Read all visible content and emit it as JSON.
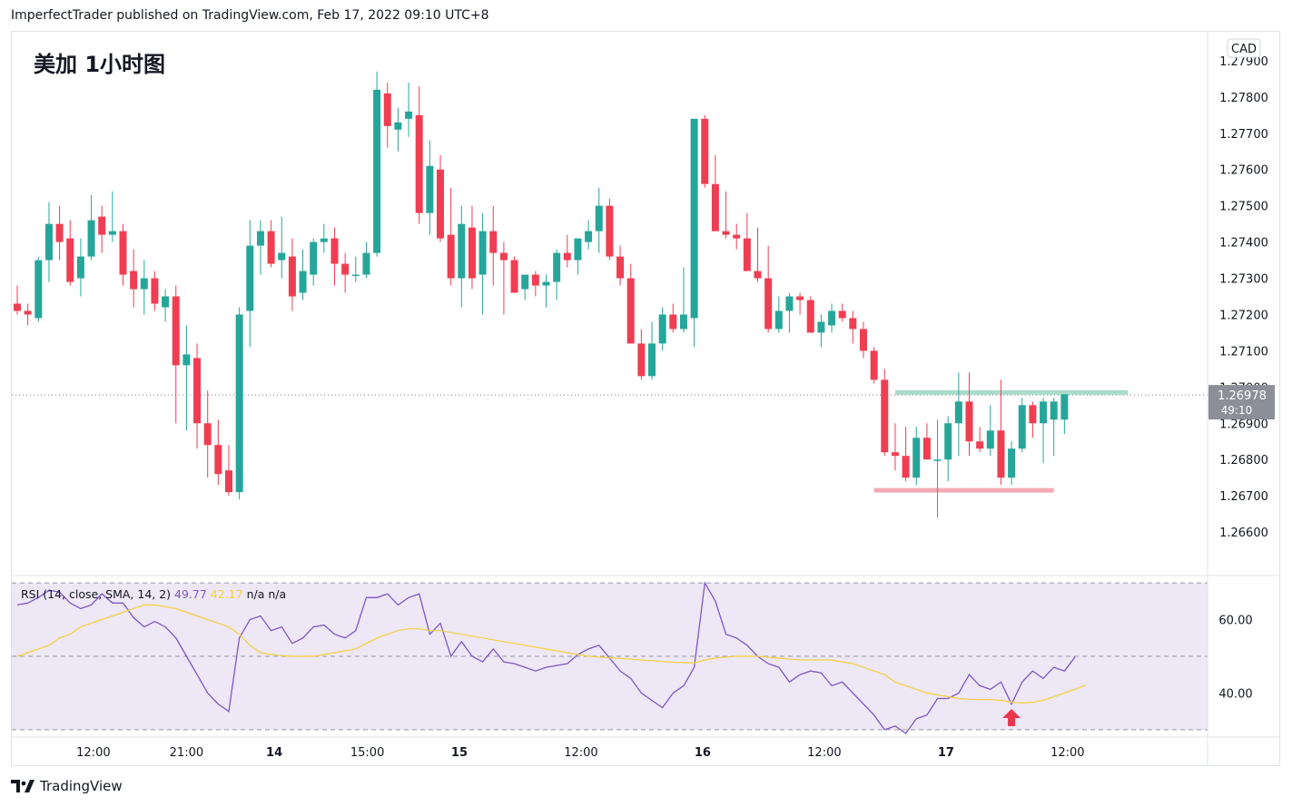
{
  "header": {
    "published_text": "ImperfectTrader published on TradingView.com, Feb 17, 2022 09:10 UTC+8"
  },
  "footer": {
    "brand": "TradingView",
    "logo_icon": "tradingview-logo-icon"
  },
  "colors": {
    "up": "#26a69a",
    "down": "#ef3e52",
    "rsi_line": "#7e57c2",
    "rsi_ma": "#f5d13c",
    "rsi_band": "#ede7f6",
    "support_line": "#f4aab4",
    "resistance_line": "#a9dcc9",
    "arrow": "#e8364e",
    "price_label_bg": "#8c8f98"
  },
  "chart_data": [
    {
      "type": "candlestick",
      "title": "美加 1小时图",
      "currency": "CAD",
      "y_ticks": [
        "1.27900",
        "1.27800",
        "1.27700",
        "1.27600",
        "1.27500",
        "1.27400",
        "1.27300",
        "1.27200",
        "1.27100",
        "1.27000",
        "1.26900",
        "1.26800",
        "1.26700",
        "1.26600"
      ],
      "y_tick_values": [
        1.279,
        1.278,
        1.277,
        1.276,
        1.275,
        1.274,
        1.273,
        1.272,
        1.271,
        1.27,
        1.269,
        1.268,
        1.267,
        1.266
      ],
      "ylim": [
        1.2648,
        1.2798
      ],
      "x_ticks": [
        {
          "label": "12:00",
          "index": 7.2,
          "bold": false
        },
        {
          "label": "21:00",
          "index": 16,
          "bold": false
        },
        {
          "label": "14",
          "index": 24.3,
          "bold": true
        },
        {
          "label": "15:00",
          "index": 33.1,
          "bold": false
        },
        {
          "label": "15",
          "index": 41.8,
          "bold": true
        },
        {
          "label": "12:00",
          "index": 53.3,
          "bold": false
        },
        {
          "label": "16",
          "index": 64.8,
          "bold": true
        },
        {
          "label": "12:00",
          "index": 76.3,
          "bold": false
        },
        {
          "label": "17",
          "index": 87.8,
          "bold": true
        },
        {
          "label": "12:00",
          "index": 99.3,
          "bold": false
        }
      ],
      "last_price": {
        "value": 1.26978,
        "label": "1.26978",
        "countdown": "49:10"
      },
      "resistance": {
        "value": 1.26985,
        "from_index": 83,
        "to_index": 105
      },
      "support": {
        "value": 1.26715,
        "from_index": 81,
        "to_index": 98
      },
      "candles": [
        [
          1.2723,
          1.2728,
          1.272,
          1.2721
        ],
        [
          1.2721,
          1.2723,
          1.2717,
          1.272
        ],
        [
          1.2719,
          1.2736,
          1.2718,
          1.2735
        ],
        [
          1.2735,
          1.2751,
          1.2729,
          1.2745
        ],
        [
          1.2745,
          1.275,
          1.2735,
          1.274
        ],
        [
          1.2741,
          1.2746,
          1.2728,
          1.2729
        ],
        [
          1.273,
          1.2741,
          1.2725,
          1.2736
        ],
        [
          1.2736,
          1.2753,
          1.2735,
          1.2746
        ],
        [
          1.2747,
          1.275,
          1.2737,
          1.2742
        ],
        [
          1.2742,
          1.2754,
          1.274,
          1.2743
        ],
        [
          1.2743,
          1.2745,
          1.2728,
          1.2731
        ],
        [
          1.2732,
          1.2738,
          1.2722,
          1.2727
        ],
        [
          1.2727,
          1.2735,
          1.272,
          1.273
        ],
        [
          1.273,
          1.2732,
          1.2721,
          1.2723
        ],
        [
          1.2722,
          1.2727,
          1.2718,
          1.2725
        ],
        [
          1.2725,
          1.2728,
          1.269,
          1.2706
        ],
        [
          1.2706,
          1.2717,
          1.2688,
          1.2709
        ],
        [
          1.2708,
          1.2712,
          1.2683,
          1.269
        ],
        [
          1.269,
          1.2699,
          1.2675,
          1.2684
        ],
        [
          1.2684,
          1.2691,
          1.2673,
          1.2676
        ],
        [
          1.2677,
          1.2684,
          1.267,
          1.2671
        ],
        [
          1.2671,
          1.2722,
          1.2669,
          1.272
        ],
        [
          1.2721,
          1.2746,
          1.2711,
          1.2739
        ],
        [
          1.2739,
          1.2746,
          1.2731,
          1.2743
        ],
        [
          1.2743,
          1.2746,
          1.2733,
          1.2734
        ],
        [
          1.2735,
          1.2747,
          1.273,
          1.2737
        ],
        [
          1.2736,
          1.2741,
          1.2721,
          1.2725
        ],
        [
          1.2726,
          1.2738,
          1.2724,
          1.2732
        ],
        [
          1.2731,
          1.2741,
          1.2728,
          1.274
        ],
        [
          1.274,
          1.2745,
          1.2737,
          1.2741
        ],
        [
          1.2741,
          1.2744,
          1.2728,
          1.2734
        ],
        [
          1.2734,
          1.2737,
          1.2726,
          1.2731
        ],
        [
          1.2731,
          1.2736,
          1.2729,
          1.2731
        ],
        [
          1.2731,
          1.274,
          1.273,
          1.2737
        ],
        [
          1.2737,
          1.2787,
          1.2736,
          1.2782
        ],
        [
          1.2781,
          1.2784,
          1.2766,
          1.2772
        ],
        [
          1.2771,
          1.2777,
          1.2765,
          1.2773
        ],
        [
          1.2774,
          1.2784,
          1.2769,
          1.2776
        ],
        [
          1.2775,
          1.2783,
          1.2745,
          1.2748
        ],
        [
          1.2748,
          1.2768,
          1.2742,
          1.2761
        ],
        [
          1.276,
          1.2764,
          1.274,
          1.2741
        ],
        [
          1.2742,
          1.2755,
          1.2728,
          1.273
        ],
        [
          1.273,
          1.275,
          1.2722,
          1.2745
        ],
        [
          1.2744,
          1.275,
          1.2727,
          1.273
        ],
        [
          1.2731,
          1.2748,
          1.272,
          1.2743
        ],
        [
          1.2743,
          1.275,
          1.2728,
          1.2737
        ],
        [
          1.2737,
          1.274,
          1.272,
          1.2735
        ],
        [
          1.2735,
          1.2736,
          1.2726,
          1.2726
        ],
        [
          1.2727,
          1.273,
          1.2724,
          1.2731
        ],
        [
          1.2731,
          1.2732,
          1.2725,
          1.2728
        ],
        [
          1.2728,
          1.2731,
          1.2722,
          1.2729
        ],
        [
          1.2729,
          1.2738,
          1.2724,
          1.2737
        ],
        [
          1.2737,
          1.2742,
          1.2733,
          1.2735
        ],
        [
          1.2735,
          1.2741,
          1.2731,
          1.2741
        ],
        [
          1.274,
          1.2746,
          1.2738,
          1.2743
        ],
        [
          1.2743,
          1.2755,
          1.2737,
          1.275
        ],
        [
          1.275,
          1.2752,
          1.2735,
          1.2736
        ],
        [
          1.2736,
          1.2739,
          1.2728,
          1.273
        ],
        [
          1.273,
          1.2734,
          1.2712,
          1.2712
        ],
        [
          1.2712,
          1.2716,
          1.2702,
          1.2703
        ],
        [
          1.2703,
          1.2718,
          1.2702,
          1.2712
        ],
        [
          1.2712,
          1.2722,
          1.271,
          1.272
        ],
        [
          1.272,
          1.2723,
          1.2715,
          1.2716
        ],
        [
          1.2716,
          1.2733,
          1.2715,
          1.272
        ],
        [
          1.2719,
          1.2774,
          1.2711,
          1.2774
        ],
        [
          1.2774,
          1.2775,
          1.2755,
          1.2756
        ],
        [
          1.2756,
          1.2764,
          1.2743,
          1.2743
        ],
        [
          1.2743,
          1.2754,
          1.2741,
          1.2742
        ],
        [
          1.2742,
          1.2745,
          1.2738,
          1.2741
        ],
        [
          1.2741,
          1.2748,
          1.2732,
          1.2732
        ],
        [
          1.2732,
          1.2744,
          1.2729,
          1.273
        ],
        [
          1.273,
          1.2739,
          1.2715,
          1.2716
        ],
        [
          1.2716,
          1.2725,
          1.2715,
          1.2721
        ],
        [
          1.2721,
          1.2726,
          1.2715,
          1.2725
        ],
        [
          1.2725,
          1.2726,
          1.272,
          1.2724
        ],
        [
          1.2724,
          1.2725,
          1.2715,
          1.2715
        ],
        [
          1.2715,
          1.272,
          1.2711,
          1.2718
        ],
        [
          1.2717,
          1.2723,
          1.2715,
          1.2721
        ],
        [
          1.2721,
          1.2723,
          1.2718,
          1.2719
        ],
        [
          1.2719,
          1.2721,
          1.2712,
          1.2716
        ],
        [
          1.2716,
          1.2718,
          1.2708,
          1.271
        ],
        [
          1.271,
          1.2711,
          1.2701,
          1.2702
        ],
        [
          1.2702,
          1.2705,
          1.2681,
          1.2682
        ],
        [
          1.2682,
          1.269,
          1.2677,
          1.2681
        ],
        [
          1.2681,
          1.2689,
          1.2674,
          1.2675
        ],
        [
          1.2675,
          1.2689,
          1.2673,
          1.2686
        ],
        [
          1.2686,
          1.269,
          1.2681,
          1.268
        ],
        [
          1.268,
          1.2691,
          1.2664,
          1.268
        ],
        [
          1.268,
          1.2692,
          1.2674,
          1.269
        ],
        [
          1.269,
          1.2704,
          1.2681,
          1.2696
        ],
        [
          1.2696,
          1.2704,
          1.2681,
          1.2685
        ],
        [
          1.2685,
          1.2689,
          1.2682,
          1.2683
        ],
        [
          1.2683,
          1.2695,
          1.2681,
          1.2688
        ],
        [
          1.2688,
          1.2702,
          1.2673,
          1.2675
        ],
        [
          1.2675,
          1.2685,
          1.2673,
          1.2683
        ],
        [
          1.2683,
          1.2697,
          1.2682,
          1.2695
        ],
        [
          1.2695,
          1.2696,
          1.2686,
          1.269
        ],
        [
          1.269,
          1.2697,
          1.2679,
          1.2696
        ],
        [
          1.2691,
          1.2697,
          1.2681,
          1.2696
        ],
        [
          1.2691,
          1.2698,
          1.2687,
          1.2698
        ]
      ]
    },
    {
      "type": "line",
      "title": "RSI (14, close, SMA, 14, 2)",
      "legend_values": [
        "49.77",
        "42.17",
        "n/a",
        "n/a"
      ],
      "y_ticks": [
        "60.00",
        "40.00"
      ],
      "y_tick_values": [
        60,
        40
      ],
      "ylim": [
        28,
        72
      ],
      "upper_band": 70,
      "mid_band": 50,
      "lower_band": 30,
      "signal_arrow": {
        "index": 94,
        "label": "up-arrow-icon"
      },
      "series": [
        {
          "name": "RSI",
          "values": [
            64,
            64.5,
            66,
            68,
            67.5,
            64.5,
            63,
            64,
            67,
            64.5,
            64.5,
            60.5,
            58,
            59.5,
            58,
            55,
            50,
            45,
            40,
            37,
            35,
            55,
            60,
            61,
            57,
            58,
            53.5,
            55,
            58,
            58.5,
            56,
            55,
            57,
            66,
            66,
            67,
            64,
            66,
            67,
            56,
            59,
            50,
            54,
            50,
            48.5,
            52,
            48.5,
            48,
            47,
            46,
            47,
            47.5,
            48,
            50.5,
            52,
            53,
            49.5,
            46,
            44,
            40,
            38,
            36,
            40,
            42,
            47,
            70,
            65,
            56,
            55,
            53,
            50,
            48,
            47,
            43,
            45,
            46,
            45.5,
            42,
            43,
            40,
            37,
            34,
            30,
            31,
            29,
            33,
            34,
            38.5,
            38.5,
            40,
            45,
            42,
            41,
            43,
            37,
            43,
            46,
            44,
            47,
            46,
            49.8
          ]
        },
        {
          "name": "RSI-based MA",
          "values": [
            50,
            51,
            52,
            53,
            55,
            56,
            58,
            59,
            60,
            61,
            62,
            63,
            64,
            64,
            63.5,
            63,
            62,
            61,
            60,
            59,
            58,
            56,
            53,
            51,
            50.5,
            50.2,
            50,
            50,
            50,
            50.5,
            51,
            51.5,
            52,
            53.5,
            55,
            56,
            57,
            57.5,
            57.5,
            57,
            57,
            56.5,
            56,
            55.5,
            55,
            54.5,
            54,
            53.5,
            53,
            52.5,
            52,
            51.5,
            51,
            50.5,
            50,
            49.8,
            49.6,
            49.4,
            49.2,
            49,
            48.8,
            48.6,
            48.4,
            48.3,
            48.2,
            49,
            49.5,
            49.8,
            50,
            50,
            50,
            49.8,
            49.5,
            49.2,
            49,
            49,
            49,
            49,
            48.5,
            48,
            47,
            46,
            45,
            43,
            42,
            41,
            40,
            39.5,
            39,
            38.5,
            38.3,
            38.2,
            38.2,
            38,
            37.5,
            37.3,
            37.5,
            38,
            39,
            40,
            41,
            42.2
          ]
        }
      ]
    }
  ]
}
